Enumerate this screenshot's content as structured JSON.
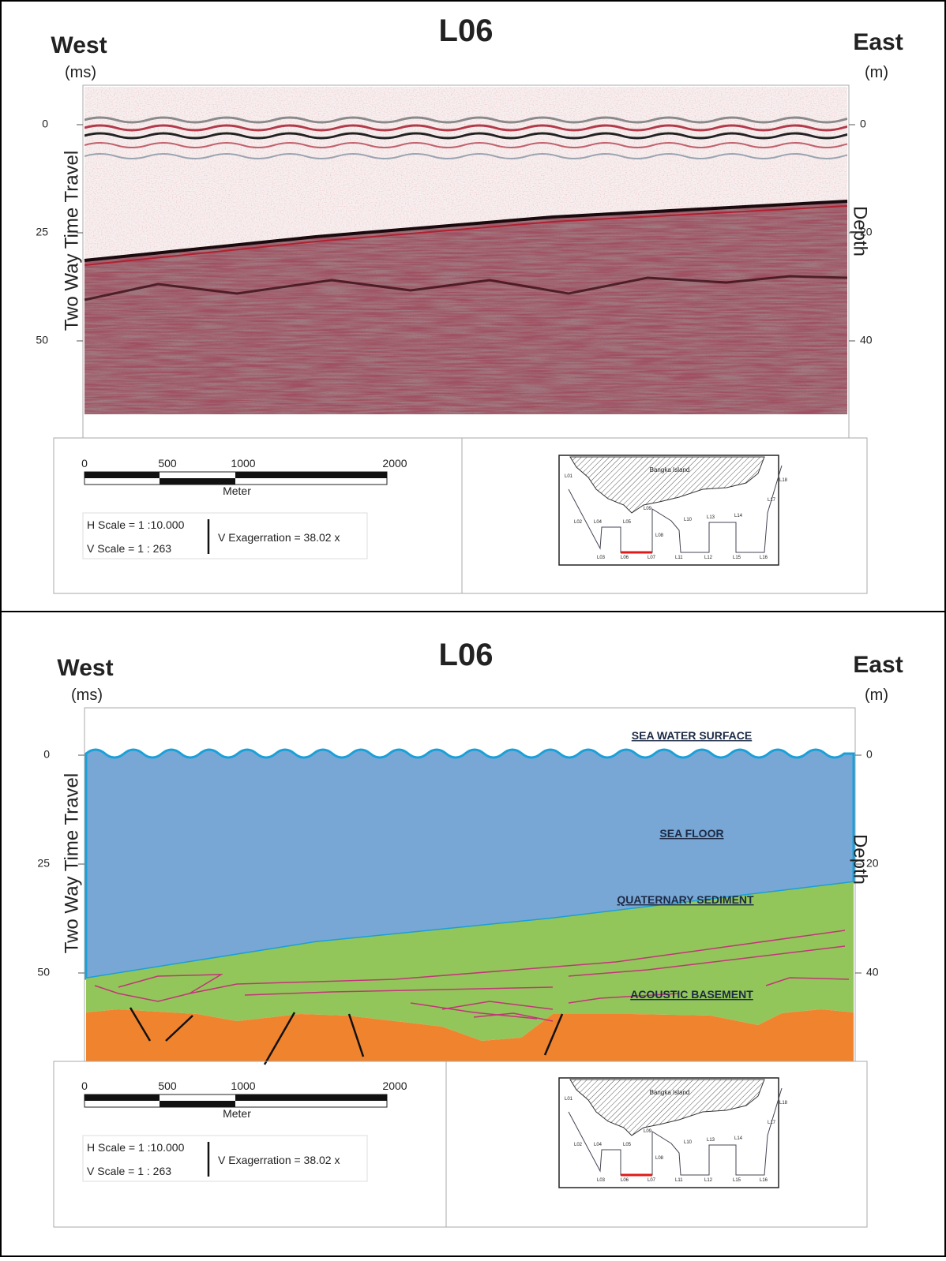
{
  "panels": [
    {
      "title": "L06",
      "west": "West",
      "east": "East",
      "left_unit": "(ms)",
      "right_unit": "(m)",
      "left_axis_title": "Two Way Time Travel",
      "right_axis_title": "Depth",
      "left_ticks": [
        0,
        25,
        50
      ],
      "right_ticks": [
        0,
        20,
        40
      ],
      "scale_bar": {
        "labels": [
          0,
          500,
          1000,
          2000
        ],
        "unit": "Meter"
      },
      "h_scale": "H Scale = 1 :10.000",
      "v_scale": "V Scale = 1 : 263",
      "v_exaggeration": "V Exagerration = 38.02 x",
      "map": {
        "island": "Bangka Island",
        "lines": [
          "L01",
          "L02",
          "L03",
          "L04",
          "L05",
          "L06",
          "L07",
          "L08",
          "L09",
          "L10",
          "L11",
          "L12",
          "L13",
          "L14",
          "L15",
          "L16",
          "L17",
          "L18"
        ]
      }
    },
    {
      "title": "L06",
      "west": "West",
      "east": "East",
      "left_unit": "(ms)",
      "right_unit": "(m)",
      "left_axis_title": "Two Way Time Travel",
      "right_axis_title": "Depth",
      "left_ticks": [
        0,
        25,
        50
      ],
      "right_ticks": [
        0,
        20,
        40
      ],
      "layers": [
        "SEA WATER SURFACE",
        "SEA FLOOR",
        "QUATERNARY SEDIMENT",
        "ACOUSTIC BASEMENT"
      ],
      "scale_bar": {
        "labels": [
          0,
          500,
          1000,
          2000
        ],
        "unit": "Meter"
      },
      "h_scale": "H Scale = 1 :10.000",
      "v_scale": "V Scale = 1 : 263",
      "v_exaggeration": "V Exagerration = 38.02 x",
      "map": {
        "island": "Bangka Island",
        "lines": [
          "L01",
          "L02",
          "L03",
          "L04",
          "L05",
          "L06",
          "L07",
          "L08",
          "L09",
          "L10",
          "L11",
          "L12",
          "L13",
          "L14",
          "L15",
          "L16",
          "L17",
          "L18"
        ]
      }
    }
  ]
}
